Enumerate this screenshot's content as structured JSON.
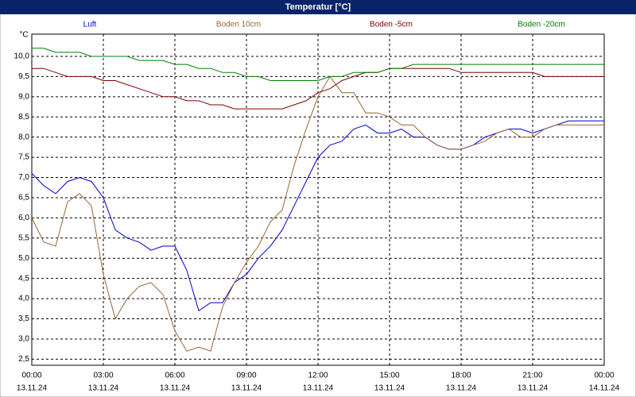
{
  "chart_data": {
    "type": "line",
    "title": "Temperatur [°C]",
    "ylabel": "°C",
    "x": [
      0,
      0.5,
      1,
      1.5,
      2,
      2.5,
      3,
      3.5,
      4,
      4.5,
      5,
      5.5,
      6,
      6.5,
      7,
      7.5,
      8,
      8.5,
      9,
      9.5,
      10,
      10.5,
      11,
      11.5,
      12,
      12.5,
      13,
      13.5,
      14,
      14.5,
      15,
      15.5,
      16,
      16.5,
      17,
      17.5,
      18,
      18.5,
      19,
      19.5,
      20,
      20.5,
      21,
      21.5,
      22,
      22.5,
      23,
      23.5,
      24
    ],
    "series": [
      {
        "name": "Luft",
        "color": "#0000cc",
        "values": [
          7.1,
          6.8,
          6.6,
          6.9,
          7.0,
          6.9,
          6.5,
          5.7,
          5.5,
          5.4,
          5.2,
          5.3,
          5.3,
          4.7,
          3.7,
          3.9,
          3.9,
          4.4,
          4.6,
          5.0,
          5.3,
          5.7,
          6.3,
          6.9,
          7.5,
          7.8,
          7.9,
          8.2,
          8.3,
          8.1,
          8.1,
          8.2,
          8.0,
          8.0,
          7.8,
          7.7,
          7.7,
          7.8,
          8.0,
          8.1,
          8.2,
          8.2,
          8.1,
          8.2,
          8.3,
          8.4,
          8.4,
          8.4,
          8.4
        ]
      },
      {
        "name": "Boden 10cm",
        "color": "#996633",
        "values": [
          6.0,
          5.4,
          5.3,
          6.4,
          6.6,
          6.3,
          4.6,
          3.5,
          4.0,
          4.3,
          4.4,
          4.1,
          3.2,
          2.7,
          2.8,
          2.7,
          3.8,
          4.4,
          4.9,
          5.3,
          5.9,
          6.2,
          7.3,
          8.2,
          9.0,
          9.5,
          9.1,
          9.1,
          8.6,
          8.6,
          8.5,
          8.3,
          8.3,
          8.0,
          7.8,
          7.7,
          7.7,
          7.8,
          7.9,
          8.1,
          8.2,
          8.0,
          8.0,
          8.2,
          8.3,
          8.3,
          8.3,
          8.3,
          8.3
        ]
      },
      {
        "name": "Boden -5cm",
        "color": "#800000",
        "values": [
          9.7,
          9.7,
          9.6,
          9.5,
          9.5,
          9.5,
          9.4,
          9.4,
          9.3,
          9.2,
          9.1,
          9.0,
          9.0,
          8.9,
          8.9,
          8.8,
          8.8,
          8.7,
          8.7,
          8.7,
          8.7,
          8.7,
          8.8,
          8.9,
          9.1,
          9.2,
          9.4,
          9.5,
          9.6,
          9.6,
          9.7,
          9.7,
          9.7,
          9.7,
          9.7,
          9.7,
          9.6,
          9.6,
          9.6,
          9.6,
          9.6,
          9.6,
          9.6,
          9.5,
          9.5,
          9.5,
          9.5,
          9.5,
          9.5
        ]
      },
      {
        "name": "Boden -20cm",
        "color": "#008000",
        "values": [
          10.2,
          10.2,
          10.1,
          10.1,
          10.1,
          10.0,
          10.0,
          10.0,
          10.0,
          9.9,
          9.9,
          9.9,
          9.8,
          9.8,
          9.7,
          9.7,
          9.6,
          9.6,
          9.5,
          9.5,
          9.4,
          9.4,
          9.4,
          9.4,
          9.4,
          9.5,
          9.5,
          9.6,
          9.6,
          9.6,
          9.7,
          9.7,
          9.8,
          9.8,
          9.8,
          9.8,
          9.8,
          9.8,
          9.8,
          9.8,
          9.8,
          9.8,
          9.8,
          9.8,
          9.8,
          9.8,
          9.8,
          9.8,
          9.8
        ]
      }
    ],
    "xlim": [
      0,
      24
    ],
    "xticks": [
      {
        "value": 0,
        "label": "00:00"
      },
      {
        "value": 3,
        "label": "03:00"
      },
      {
        "value": 6,
        "label": "06:00"
      },
      {
        "value": 9,
        "label": "09:00"
      },
      {
        "value": 12,
        "label": "12:00"
      },
      {
        "value": 15,
        "label": "15:00"
      },
      {
        "value": 18,
        "label": "18:00"
      },
      {
        "value": 21,
        "label": "21:00"
      },
      {
        "value": 24,
        "label": "00:00"
      }
    ],
    "xtick_dates": [
      "13.11.24",
      "13.11.24",
      "13.11.24",
      "13.11.24",
      "13.11.24",
      "13.11.24",
      "13.11.24",
      "13.11.24",
      "14.11.24"
    ],
    "ylim": [
      2.35,
      10.55
    ],
    "yticks": [
      {
        "value": 2.5,
        "label": "2,5"
      },
      {
        "value": 3,
        "label": "3,0"
      },
      {
        "value": 3.5,
        "label": "3,5"
      },
      {
        "value": 4,
        "label": "4,0"
      },
      {
        "value": 4.5,
        "label": "4,5"
      },
      {
        "value": 5,
        "label": "5,0"
      },
      {
        "value": 5.5,
        "label": "5,5"
      },
      {
        "value": 6,
        "label": "6,0"
      },
      {
        "value": 6.5,
        "label": "6,5"
      },
      {
        "value": 7,
        "label": "7,0"
      },
      {
        "value": 7.5,
        "label": "7,5"
      },
      {
        "value": 8,
        "label": "8,0"
      },
      {
        "value": 8.5,
        "label": "8,5"
      },
      {
        "value": 9,
        "label": "9,0"
      },
      {
        "value": 9.5,
        "label": "9,5"
      },
      {
        "value": 10,
        "label": "10,0"
      }
    ],
    "grid": true
  }
}
